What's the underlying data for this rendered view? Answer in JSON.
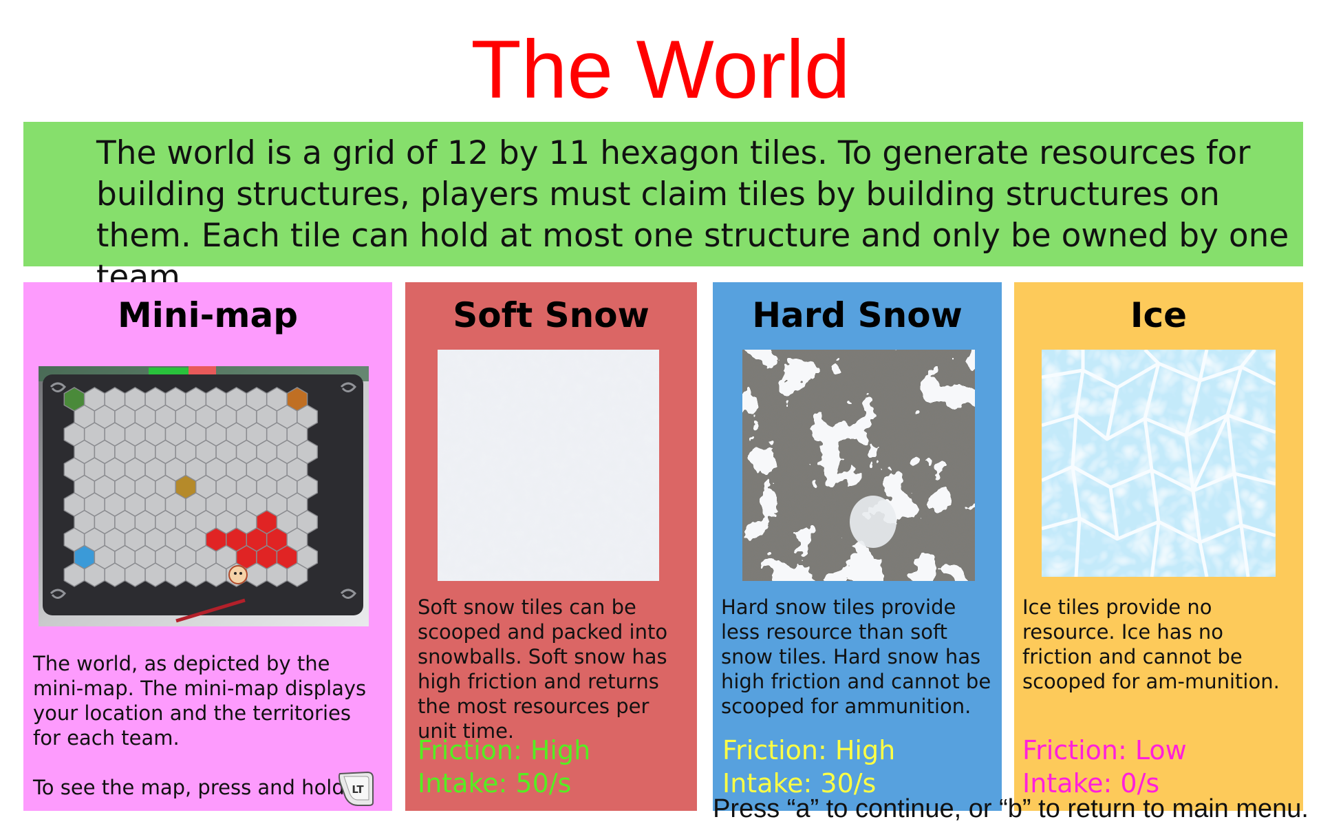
{
  "title": "The World",
  "intro": "The world is a grid of 12 by 11 hexagon tiles. To generate resources for building structures, players must claim tiles by building structures on them. Each tile can hold at most one structure and only be owned by one team.",
  "minimap": {
    "heading": "Mini-map",
    "description": "The world, as depicted by the mini-map. The mini-map displays your location and the territories for each team.",
    "hint": "To see the map, press and hold:",
    "button_icon": "LT",
    "colors": {
      "background": "#fd9bfd"
    }
  },
  "soft_snow": {
    "heading": "Soft Snow",
    "description": "Soft snow tiles can be scooped and packed into snowballs. Soft snow has high friction and returns the most resources per unit time.",
    "friction": "Friction: High",
    "intake": "Intake: 50/s",
    "colors": {
      "background": "#db6665",
      "stat": "#55ee22"
    }
  },
  "hard_snow": {
    "heading": "Hard Snow",
    "description": "Hard snow tiles provide less resource than soft snow tiles. Hard snow has high friction and cannot be scooped for ammunition.",
    "friction": "Friction: High",
    "intake": "Intake: 30/s",
    "colors": {
      "background": "#57a1de",
      "stat": "#ffff44"
    }
  },
  "ice": {
    "heading": "Ice",
    "description": "Ice tiles provide no resource. Ice has no friction and cannot be scooped for am-munition.",
    "friction": "Friction: Low",
    "intake": "Intake: 0/s",
    "colors": {
      "background": "#fdca5a",
      "stat": "#ff1fdc"
    }
  },
  "footer": "Press “a” to continue, or “b” to return to main menu."
}
